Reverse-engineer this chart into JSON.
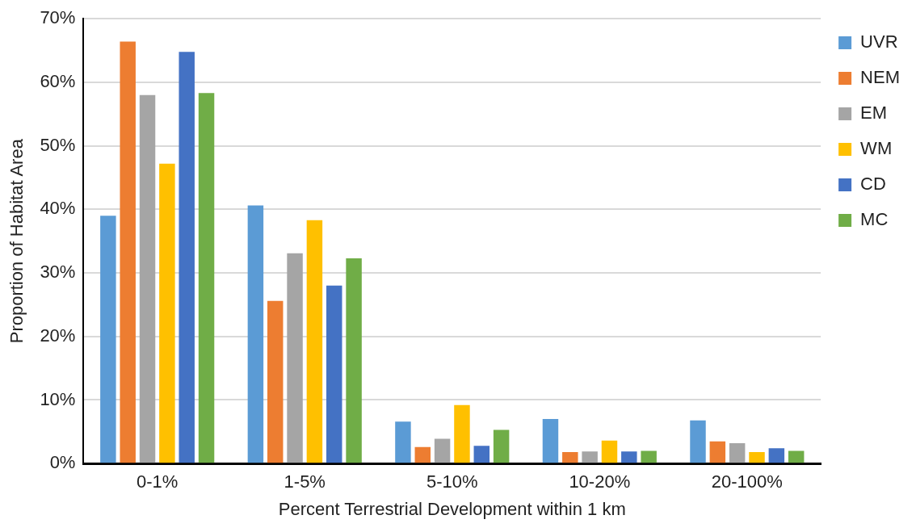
{
  "chart_data": {
    "type": "bar",
    "xlabel": "Percent Terrestrial Development within 1 km",
    "ylabel": "Proportion of Habitat Area",
    "categories": [
      "0-1%",
      "1-5%",
      "5-10%",
      "10-20%",
      "20-100%"
    ],
    "series": [
      {
        "name": "UVR",
        "color": "#5b9bd5",
        "values": [
          39.0,
          40.6,
          6.6,
          7.0,
          6.8
        ]
      },
      {
        "name": "NEM",
        "color": "#ed7d31",
        "values": [
          66.4,
          25.6,
          2.6,
          1.8,
          3.5
        ]
      },
      {
        "name": "EM",
        "color": "#a5a5a5",
        "values": [
          58.0,
          33.1,
          3.9,
          1.9,
          3.2
        ]
      },
      {
        "name": "WM",
        "color": "#ffc000",
        "values": [
          47.2,
          38.3,
          9.2,
          3.6,
          1.8
        ]
      },
      {
        "name": "CD",
        "color": "#4472c4",
        "values": [
          64.8,
          28.0,
          2.8,
          1.9,
          2.4
        ]
      },
      {
        "name": "MC",
        "color": "#70ad47",
        "values": [
          58.3,
          32.3,
          5.3,
          2.0,
          2.0
        ]
      }
    ],
    "ylim": [
      0,
      70
    ],
    "yticks": [
      {
        "value": 0,
        "label": "0%"
      },
      {
        "value": 10,
        "label": "10%"
      },
      {
        "value": 20,
        "label": "20%"
      },
      {
        "value": 30,
        "label": "30%"
      },
      {
        "value": 40,
        "label": "40%"
      },
      {
        "value": 50,
        "label": "50%"
      },
      {
        "value": 60,
        "label": "60%"
      },
      {
        "value": 70,
        "label": "70%"
      }
    ],
    "grid": "y",
    "legend": "top right"
  }
}
